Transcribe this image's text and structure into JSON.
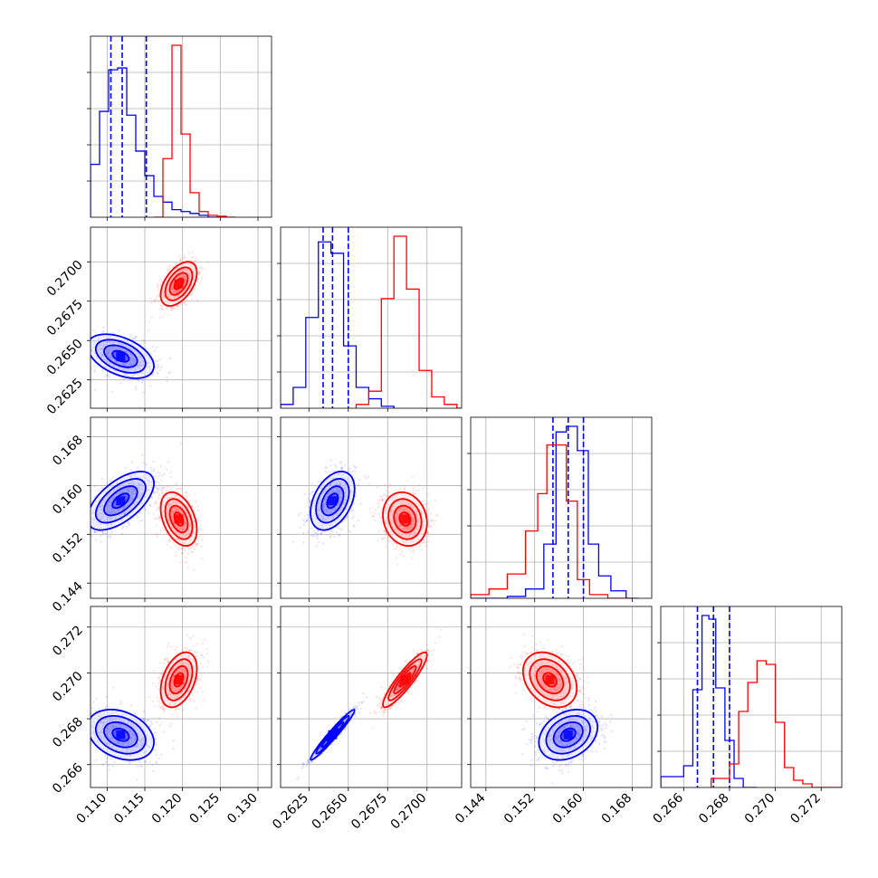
{
  "chart_data": {
    "type": "corner",
    "params": [
      {
        "axis_ticks": [
          0.11,
          0.115,
          0.12,
          0.125,
          0.13
        ],
        "tick_labels": [
          "0.110",
          "0.115",
          "0.120",
          "0.125",
          "0.130"
        ],
        "range": [
          0.1078,
          0.1318
        ]
      },
      {
        "axis_ticks": [
          0.2625,
          0.265,
          0.2675,
          0.27
        ],
        "tick_labels": [
          "0.2625",
          "0.2650",
          "0.2675",
          "0.2700"
        ],
        "range": [
          0.2607,
          0.2722
        ]
      },
      {
        "axis_ticks": [
          0.144,
          0.152,
          0.16,
          0.168
        ],
        "tick_labels": [
          "0.144",
          "0.152",
          "0.160",
          "0.168"
        ],
        "range": [
          0.1415,
          0.1712
        ]
      },
      {
        "axis_ticks": [
          0.266,
          0.268,
          0.27,
          0.272
        ],
        "tick_labels": [
          "0.266",
          "0.268",
          "0.270",
          "0.272"
        ],
        "range": [
          0.265,
          0.2729
        ]
      }
    ],
    "series": [
      {
        "color": "#0000ff",
        "mean": [
          0.1118,
          0.264,
          0.1575,
          0.2673
        ],
        "std": [
          0.0022,
          0.0007,
          0.0024,
          0.00055
        ],
        "quantiles": [
          [
            0.1105,
            0.112,
            0.1152
          ],
          [
            0.2634,
            0.264,
            0.265
          ],
          [
            0.155,
            0.1575,
            0.16
          ],
          [
            0.2666,
            0.2673,
            0.268
          ]
        ],
        "hist": [
          {
            "edges": [
              0.1078,
              0.109,
              0.1102,
              0.1114,
              0.1126,
              0.1138,
              0.115,
              0.1162,
              0.1174,
              0.1186,
              0.1198,
              0.121,
              0.1222,
              0.1234,
              0.1246
            ],
            "counts": [
              0.28,
              0.56,
              0.78,
              0.79,
              0.54,
              0.35,
              0.22,
              0.11,
              0.08,
              0.04,
              0.03,
              0.02,
              0.01,
              0.0
            ]
          },
          {
            "edges": [
              0.2607,
              0.2615,
              0.2623,
              0.2631,
              0.2639,
              0.2647,
              0.2655,
              0.2663,
              0.2671,
              0.2679
            ],
            "counts": [
              0.02,
              0.11,
              0.48,
              0.88,
              0.82,
              0.33,
              0.11,
              0.05,
              0.01
            ]
          },
          {
            "edges": [
              0.1415,
              0.1445,
              0.1475,
              0.1505,
              0.1535,
              0.1555,
              0.1572,
              0.159,
              0.1608,
              0.1625,
              0.1645,
              0.167,
              0.169
            ],
            "counts": [
              0.0,
              0.0,
              0.01,
              0.05,
              0.29,
              0.89,
              0.92,
              0.79,
              0.29,
              0.12,
              0.04,
              0.0
            ]
          },
          {
            "edges": [
              0.265,
              0.266,
              0.2664,
              0.2668,
              0.2671,
              0.2674,
              0.2678,
              0.2682,
              0.2686,
              0.2692
            ],
            "counts": [
              0.06,
              0.12,
              0.54,
              0.95,
              0.93,
              0.55,
              0.26,
              0.05,
              0.0
            ]
          }
        ]
      },
      {
        "color": "#ff0000",
        "mean": [
          0.1195,
          0.2686,
          0.1545,
          0.2697
        ],
        "std": [
          0.0012,
          0.0007,
          0.0022,
          0.0006
        ],
        "quantiles": [],
        "hist": [
          {
            "edges": [
              0.1162,
              0.1174,
              0.1186,
              0.1198,
              0.121,
              0.1222,
              0.1234,
              0.1246,
              0.1258,
              0.127
            ],
            "counts": [
              0.0,
              0.31,
              0.91,
              0.44,
              0.13,
              0.03,
              0.01,
              0.005,
              0.0
            ]
          },
          {
            "edges": [
              0.2655,
              0.2663,
              0.2671,
              0.2679,
              0.2687,
              0.2695,
              0.2703,
              0.2711,
              0.2719,
              0.2725
            ],
            "counts": [
              0.02,
              0.09,
              0.58,
              0.91,
              0.63,
              0.2,
              0.06,
              0.02,
              0.0
            ]
          },
          {
            "edges": [
              0.1415,
              0.1445,
              0.1475,
              0.1505,
              0.1525,
              0.154,
              0.1555,
              0.1572,
              0.159,
              0.161,
              0.164,
              0.168
            ],
            "counts": [
              0.02,
              0.05,
              0.13,
              0.36,
              0.56,
              0.82,
              0.82,
              0.52,
              0.1,
              0.02,
              0.0
            ]
          },
          {
            "edges": [
              0.2672,
              0.268,
              0.2684,
              0.2688,
              0.2692,
              0.2696,
              0.27,
              0.2704,
              0.2708,
              0.2712,
              0.2716,
              0.272,
              0.2729
            ],
            "counts": [
              0.05,
              0.13,
              0.42,
              0.58,
              0.7,
              0.68,
              0.36,
              0.11,
              0.04,
              0.02,
              0.0,
              0.0
            ]
          }
        ]
      }
    ],
    "correlations": {
      "1-0": [
        -0.45,
        0.5
      ],
      "2-0": [
        0.6,
        -0.4
      ],
      "2-1": [
        0.4,
        -0.15
      ],
      "3-0": [
        -0.3,
        0.4
      ],
      "3-1": [
        0.97,
        0.9
      ],
      "3-2": [
        0.3,
        -0.3
      ]
    },
    "contour_levels": [
      0.5,
      1.0,
      1.5,
      2.0
    ],
    "grid": true
  }
}
